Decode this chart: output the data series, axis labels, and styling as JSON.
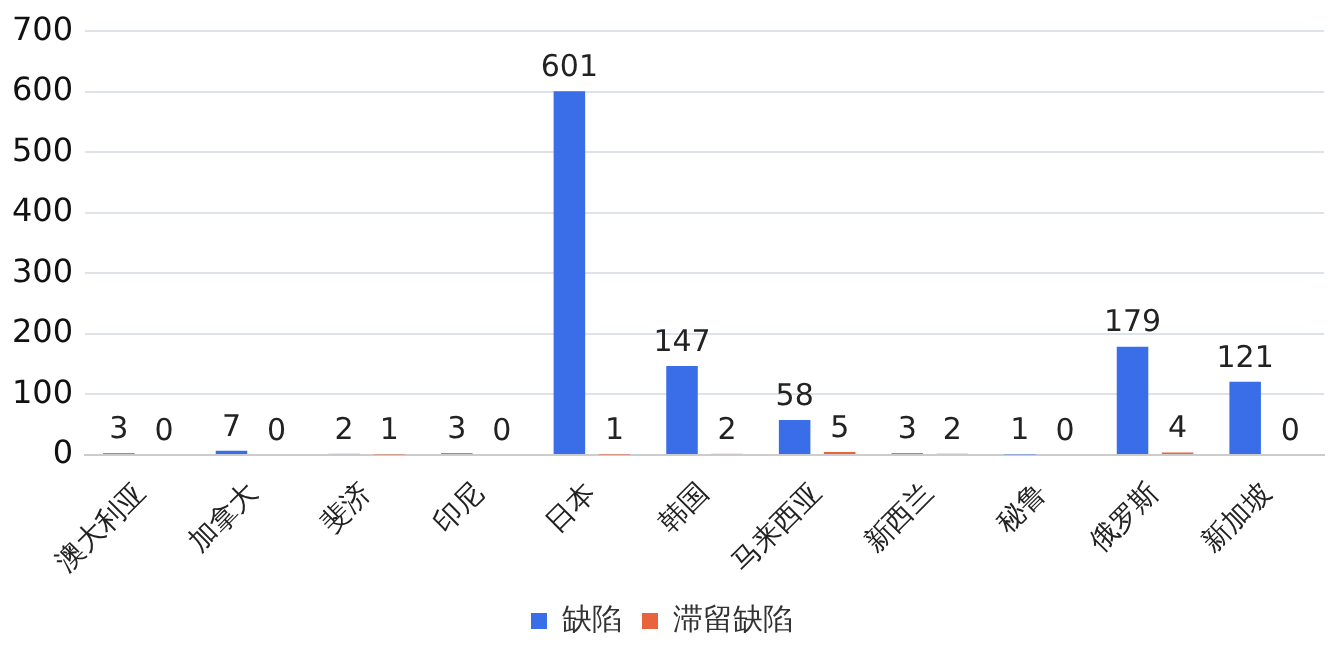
{
  "chart_data": {
    "type": "bar",
    "categories": [
      "澳大利亚",
      "加拿大",
      "斐济",
      "印尼",
      "日本",
      "韩国",
      "马来西亚",
      "新西兰",
      "秘鲁",
      "俄罗斯",
      "新加坡"
    ],
    "series": [
      {
        "name": "缺陷",
        "color": "#3a6ee8",
        "values": [
          3,
          7,
          2,
          3,
          601,
          147,
          58,
          3,
          1,
          179,
          121
        ]
      },
      {
        "name": "滞留缺陷",
        "color": "#e8643c",
        "values": [
          0,
          0,
          1,
          0,
          1,
          2,
          5,
          2,
          0,
          4,
          0
        ]
      }
    ],
    "ylim": [
      0,
      700
    ],
    "yticks": [
      0,
      100,
      200,
      300,
      400,
      500,
      600,
      700
    ],
    "grid": "y",
    "legend": "bottom",
    "data_labels": true
  }
}
